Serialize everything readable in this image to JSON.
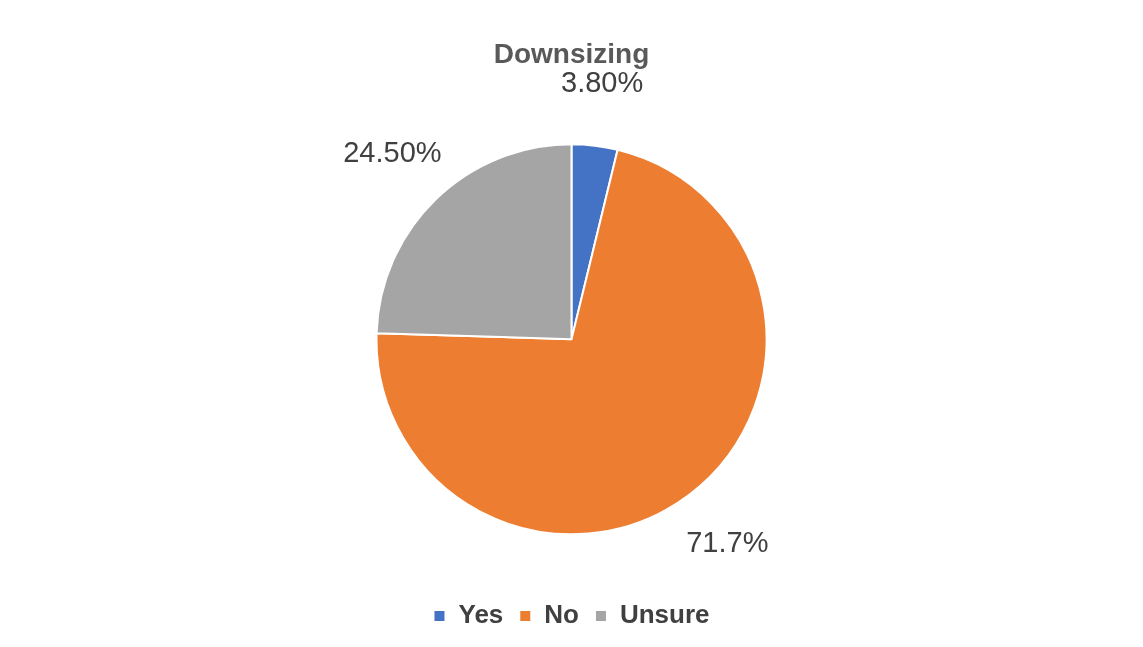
{
  "chart_data": {
    "type": "pie",
    "title": "Downsizing",
    "categories": [
      "Yes",
      "No",
      "Unsure"
    ],
    "values": [
      3.8,
      71.7,
      24.5
    ],
    "value_labels": [
      "3.80%",
      "71.7%",
      "24.50%"
    ],
    "colors": [
      "#4472c4",
      "#ed7d31",
      "#a5a5a5"
    ],
    "legend": "bottom"
  }
}
